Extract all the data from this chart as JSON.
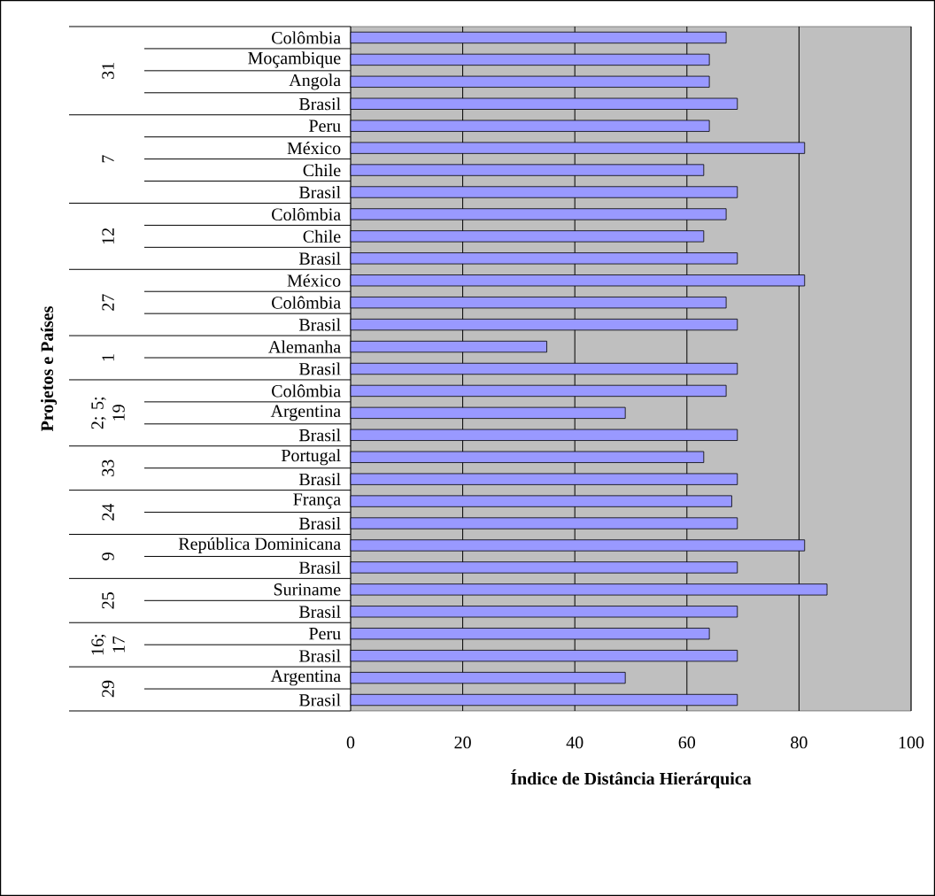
{
  "chart_data": {
    "type": "bar",
    "orientation": "horizontal",
    "xlabel": "Índice de Distância Hierárquica",
    "categories": [
      "Colômbia",
      "Moçambique",
      "Angola",
      "Brasil",
      "Peru",
      "México",
      "Chile",
      "Brasil",
      "Colômbia",
      "Chile",
      "Brasil",
      "México",
      "Colômbia",
      "Brasil",
      "Alemanha",
      "Brasil",
      "Colômbia",
      "Argentina",
      "Brasil",
      "Portugal",
      "Brasil",
      "França",
      "Brasil",
      "República Dominicana",
      "Brasil",
      "Suriname",
      "Brasil",
      "Peru",
      "Brasil",
      "Argentina",
      "Brasil"
    ],
    "series": [
      {
        "color": "#9999ff",
        "values": [
          67,
          64,
          64,
          69,
          null,
          null,
          null,
          null,
          null,
          null,
          null,
          null,
          null,
          null,
          null,
          null,
          null,
          null,
          null,
          null,
          null,
          null,
          null,
          null,
          null,
          null,
          null,
          null,
          null,
          null,
          null
        ]
      },
      {
        "color": "#9999ff",
        "values": [
          null,
          null,
          null,
          null,
          64,
          81,
          63,
          69,
          null,
          null,
          null,
          null,
          null,
          null,
          null,
          null,
          null,
          null,
          null,
          null,
          null,
          null,
          null,
          null,
          null,
          null,
          null,
          null,
          null,
          null,
          null
        ]
      },
      {
        "color": "#9999ff",
        "values": [
          null,
          null,
          null,
          null,
          null,
          null,
          null,
          null,
          67,
          63,
          69,
          null,
          null,
          null,
          null,
          null,
          null,
          null,
          null,
          null,
          null,
          null,
          null,
          null,
          null,
          null,
          null,
          null,
          null,
          null,
          null
        ]
      },
      {
        "color": "#9999ff",
        "values": [
          null,
          null,
          null,
          null,
          null,
          null,
          null,
          null,
          null,
          null,
          null,
          81,
          67,
          69,
          null,
          null,
          null,
          null,
          null,
          null,
          null,
          null,
          null,
          null,
          null,
          null,
          null,
          null,
          null,
          null,
          null
        ]
      },
      {
        "color": "#9999ff",
        "values": [
          null,
          null,
          null,
          null,
          null,
          null,
          null,
          null,
          null,
          null,
          null,
          null,
          null,
          null,
          35,
          69,
          null,
          null,
          null,
          null,
          null,
          null,
          null,
          null,
          null,
          null,
          null,
          null,
          null,
          null,
          null
        ]
      },
      {
        "color": "#9999ff",
        "values": [
          null,
          null,
          null,
          null,
          null,
          null,
          null,
          null,
          null,
          null,
          null,
          null,
          null,
          null,
          null,
          null,
          67,
          49,
          69,
          null,
          null,
          null,
          null,
          null,
          null,
          null,
          null,
          null,
          null,
          null,
          null
        ]
      },
      {
        "color": "#9999ff",
        "values": [
          null,
          null,
          null,
          null,
          null,
          null,
          null,
          null,
          null,
          null,
          null,
          null,
          null,
          null,
          null,
          null,
          null,
          null,
          null,
          63,
          69,
          null,
          null,
          null,
          null,
          null,
          null,
          null,
          null,
          null,
          null
        ]
      },
      {
        "color": "#9999ff",
        "values": [
          null,
          null,
          null,
          null,
          null,
          null,
          null,
          null,
          null,
          null,
          null,
          null,
          null,
          null,
          null,
          null,
          null,
          null,
          null,
          null,
          null,
          68,
          69,
          null,
          null,
          null,
          null,
          null,
          null,
          null,
          null
        ]
      },
      {
        "color": "#9999ff",
        "values": [
          null,
          null,
          null,
          null,
          null,
          null,
          null,
          null,
          null,
          null,
          null,
          null,
          null,
          null,
          null,
          null,
          null,
          null,
          null,
          null,
          null,
          null,
          null,
          81,
          69,
          null,
          null,
          null,
          null,
          null,
          null
        ]
      },
      {
        "color": "#9999ff",
        "values": [
          null,
          null,
          null,
          null,
          null,
          null,
          null,
          null,
          null,
          null,
          null,
          null,
          null,
          null,
          null,
          null,
          null,
          null,
          null,
          null,
          null,
          null,
          null,
          null,
          null,
          85,
          69,
          null,
          null,
          null,
          null
        ]
      },
      {
        "color": "#9999ff",
        "values": [
          null,
          null,
          null,
          null,
          null,
          null,
          null,
          null,
          null,
          null,
          null,
          null,
          null,
          null,
          null,
          null,
          null,
          null,
          null,
          null,
          null,
          null,
          null,
          null,
          null,
          null,
          null,
          64,
          69,
          null,
          null
        ]
      },
      {
        "color": "#9999ff",
        "values": [
          null,
          null,
          null,
          null,
          null,
          null,
          null,
          null,
          null,
          null,
          null,
          null,
          null,
          null,
          null,
          null,
          null,
          null,
          null,
          null,
          null,
          null,
          null,
          null,
          null,
          null,
          null,
          null,
          null,
          49,
          69
        ]
      }
    ],
    "annotations": [
      "31",
      "7",
      "12",
      "27",
      "1",
      "2; 5; 19",
      "33",
      "24",
      "9",
      "25",
      "16; 17",
      "29",
      "Projetos e Países"
    ],
    "xlim": [
      0,
      100
    ],
    "xticks": [
      0,
      20,
      40,
      60,
      80,
      100
    ],
    "grid": "x"
  }
}
